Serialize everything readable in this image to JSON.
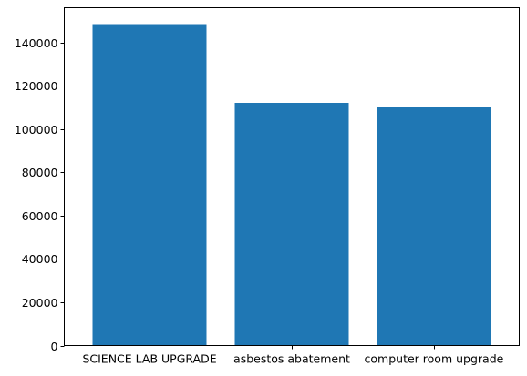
{
  "chart_data": {
    "type": "bar",
    "title": "",
    "xlabel": "",
    "ylabel": "",
    "categories": [
      "SCIENCE LAB UPGRADE",
      "asbestos abatement",
      "computer room upgrade"
    ],
    "values": [
      148500,
      112000,
      110000
    ],
    "ylim": [
      0,
      156000
    ],
    "yticks": [
      0,
      20000,
      40000,
      60000,
      80000,
      100000,
      120000,
      140000
    ],
    "bar_color": "#1f77b4",
    "grid": false,
    "legend": "none"
  }
}
